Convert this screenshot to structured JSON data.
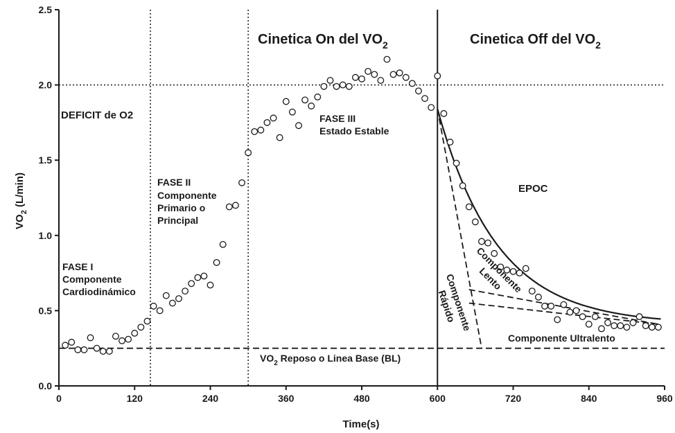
{
  "chart_data": {
    "type": "scatter",
    "xlabel": "Time(s)",
    "ylabel_main": "VO",
    "ylabel_sub": "2",
    "ylabel_unit": "(L/min)",
    "xlim": [
      0,
      960
    ],
    "ylim": [
      0,
      2.5
    ],
    "xticks": [
      0,
      120,
      240,
      360,
      480,
      600,
      720,
      840,
      960
    ],
    "yticks": [
      0.0,
      0.5,
      1.0,
      1.5,
      2.0,
      2.5
    ],
    "ytick_labels": [
      "0.0",
      "0.5",
      "1.0",
      "1.5",
      "2.0",
      "2.5"
    ],
    "grid": false,
    "phase_boundaries": [
      145,
      300
    ],
    "exercise_end": 600,
    "baseline": 0.25,
    "max_level": 2.0,
    "points": [
      [
        10,
        0.27
      ],
      [
        20,
        0.29
      ],
      [
        30,
        0.24
      ],
      [
        40,
        0.24
      ],
      [
        50,
        0.32
      ],
      [
        60,
        0.25
      ],
      [
        70,
        0.23
      ],
      [
        80,
        0.23
      ],
      [
        90,
        0.33
      ],
      [
        100,
        0.3
      ],
      [
        110,
        0.31
      ],
      [
        120,
        0.35
      ],
      [
        130,
        0.39
      ],
      [
        140,
        0.43
      ],
      [
        150,
        0.53
      ],
      [
        160,
        0.5
      ],
      [
        170,
        0.6
      ],
      [
        180,
        0.55
      ],
      [
        190,
        0.58
      ],
      [
        200,
        0.63
      ],
      [
        210,
        0.68
      ],
      [
        220,
        0.72
      ],
      [
        230,
        0.73
      ],
      [
        240,
        0.67
      ],
      [
        250,
        0.82
      ],
      [
        260,
        0.94
      ],
      [
        270,
        1.19
      ],
      [
        280,
        1.2
      ],
      [
        290,
        1.35
      ],
      [
        300,
        1.55
      ],
      [
        310,
        1.69
      ],
      [
        320,
        1.7
      ],
      [
        330,
        1.75
      ],
      [
        340,
        1.78
      ],
      [
        350,
        1.65
      ],
      [
        360,
        1.89
      ],
      [
        370,
        1.82
      ],
      [
        380,
        1.73
      ],
      [
        390,
        1.9
      ],
      [
        400,
        1.86
      ],
      [
        410,
        1.92
      ],
      [
        420,
        1.99
      ],
      [
        430,
        2.03
      ],
      [
        440,
        1.99
      ],
      [
        450,
        2.0
      ],
      [
        460,
        1.99
      ],
      [
        470,
        2.05
      ],
      [
        480,
        2.04
      ],
      [
        490,
        2.09
      ],
      [
        500,
        2.07
      ],
      [
        510,
        2.03
      ],
      [
        520,
        2.17
      ],
      [
        530,
        2.07
      ],
      [
        540,
        2.08
      ],
      [
        550,
        2.05
      ],
      [
        560,
        2.01
      ],
      [
        570,
        1.96
      ],
      [
        580,
        1.91
      ],
      [
        590,
        1.85
      ],
      [
        600,
        2.06
      ],
      [
        610,
        1.81
      ],
      [
        620,
        1.62
      ],
      [
        630,
        1.48
      ],
      [
        640,
        1.33
      ],
      [
        650,
        1.19
      ],
      [
        660,
        1.09
      ],
      [
        670,
        0.96
      ],
      [
        680,
        0.95
      ],
      [
        690,
        0.88
      ],
      [
        700,
        0.79
      ],
      [
        710,
        0.77
      ],
      [
        720,
        0.76
      ],
      [
        730,
        0.75
      ],
      [
        740,
        0.78
      ],
      [
        750,
        0.63
      ],
      [
        760,
        0.59
      ],
      [
        770,
        0.53
      ],
      [
        780,
        0.53
      ],
      [
        790,
        0.44
      ],
      [
        800,
        0.54
      ],
      [
        810,
        0.49
      ],
      [
        820,
        0.5
      ],
      [
        830,
        0.46
      ],
      [
        840,
        0.41
      ],
      [
        850,
        0.46
      ],
      [
        860,
        0.38
      ],
      [
        870,
        0.42
      ],
      [
        880,
        0.4
      ],
      [
        890,
        0.4
      ],
      [
        900,
        0.39
      ],
      [
        910,
        0.42
      ],
      [
        920,
        0.46
      ],
      [
        930,
        0.4
      ],
      [
        940,
        0.39
      ],
      [
        950,
        0.39
      ]
    ],
    "epoc_curve": {
      "baseline": 0.41,
      "amplitude": 1.43,
      "start": 600,
      "tau": 95,
      "end": 955
    },
    "dashed_lines": [
      [
        [
          600,
          1.84
        ],
        [
          670,
          0.25
        ]
      ],
      [
        [
          650,
          0.64
        ],
        [
          950,
          0.41
        ]
      ],
      [
        [
          650,
          0.55
        ],
        [
          950,
          0.41
        ]
      ]
    ]
  },
  "labels": {
    "title_on_main": "Cinetica On del VO",
    "title_on_sub": "2",
    "title_off_main": "Cinetica Off del VO",
    "title_off_sub": "2",
    "deficit": "DEFICIT de O2",
    "fase1_l1": "FASE I",
    "fase1_l2": "Componente",
    "fase1_l3": "Cardiodinámico",
    "fase2_l1": "FASE II",
    "fase2_l2": "Componente",
    "fase2_l3": "Primario o",
    "fase2_l4": "Principal",
    "fase3_l1": "FASE III",
    "fase3_l2": "Estado Estable",
    "epoc": "EPOC",
    "comp_lento_l1": "Componente",
    "comp_lento_l2": "Lento",
    "comp_rapido_l1": "Componente",
    "comp_rapido_l2": "Rápido",
    "comp_ultralento": "Componente Ultralento",
    "baseline_main": "VO",
    "baseline_sub": "2",
    "baseline_rest": " Reposo o Linea Base (BL)"
  }
}
